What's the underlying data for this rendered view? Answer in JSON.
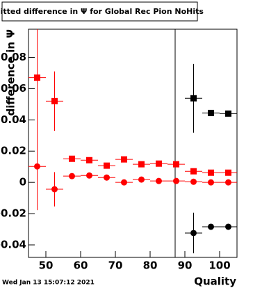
{
  "chart_data": {
    "type": "scatter",
    "title": "Fitted difference in  Ψ  for Global Rec Pion NoHits",
    "y_label": "difference in  Ψ",
    "x_label": "Quality",
    "timestamp": "Wed Jan 13 15:07:12 2021",
    "x": [
      47.5,
      52.5,
      57.5,
      62.5,
      67.5,
      72.5,
      77.5,
      82.5,
      87.5,
      92.5,
      97.5,
      102.5
    ],
    "xerr": 2.5,
    "series": [
      {
        "color": "#ff0000",
        "marker": "square",
        "values": [
          0.067,
          0.052,
          0.0151,
          0.0142,
          0.0107,
          0.0147,
          0.0116,
          0.012,
          0.0116,
          0.0071,
          0.0062,
          0.0062
        ],
        "errors": [
          0.084,
          0.019,
          0.0008,
          0.0008,
          0.0008,
          0.0008,
          0.0008,
          0.0008,
          0.0008,
          0.0008,
          0.0008,
          0.0008
        ]
      },
      {
        "color": "#ff0000",
        "marker": "circle",
        "values": [
          0.0102,
          -0.0044,
          0.004,
          0.0044,
          0.0031,
          0,
          0.0018,
          0.0009,
          0.0009,
          0.0004,
          0,
          0
        ],
        "errors": [
          0.028,
          0.011,
          0.0008,
          0.0008,
          0.0008,
          0.0008,
          0.0008,
          0.0008,
          0.0008,
          0.0008,
          0.0008,
          0.0008
        ]
      },
      {
        "color": "#000000",
        "marker": "square",
        "values": [
          null,
          null,
          null,
          null,
          null,
          null,
          null,
          null,
          null,
          0.0538,
          0.0444,
          0.044
        ],
        "errors": [
          null,
          null,
          null,
          null,
          null,
          null,
          null,
          null,
          null,
          0.022,
          0.0008,
          0.0008
        ]
      },
      {
        "color": "#000000",
        "marker": "circle",
        "values": [
          null,
          null,
          null,
          null,
          null,
          null,
          null,
          null,
          null,
          -0.0324,
          -0.0284,
          -0.0284
        ],
        "errors": [
          null,
          null,
          null,
          null,
          null,
          null,
          null,
          null,
          null,
          0.013,
          0.0008,
          0.0008
        ]
      }
    ],
    "xlim": [
      45,
      105
    ],
    "xticks": [
      50,
      60,
      70,
      80,
      90,
      100
    ],
    "ylim": [
      -0.048,
      0.098
    ],
    "yticks": [
      -0.04,
      -0.02,
      0,
      0.02,
      0.04,
      0.06,
      0.08
    ]
  }
}
